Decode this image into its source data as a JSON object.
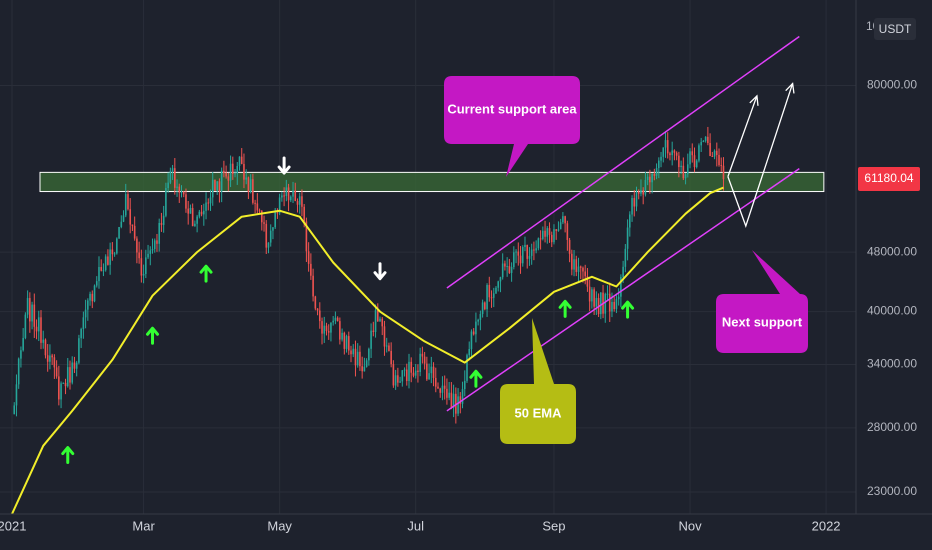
{
  "colors": {
    "background": "#1e222d",
    "grid": "#2a2e39",
    "candle_up": "#26a69a",
    "candle_down": "#ef5350",
    "ema": "#f2ee2a",
    "channel": "#e040fb",
    "zone_fill": "#3a6b35",
    "zone_stroke": "#ffffff",
    "callout_magenta": "#c418c4",
    "callout_olive": "#b5bd14",
    "arrow_up": "#33ff33",
    "price_label_bg": "#f23645"
  },
  "chart_data": {
    "type": "candlestick",
    "symbol_currency": "USDT",
    "y_scale": "log",
    "ylim": [
      21500,
      104000
    ],
    "x_range": [
      "2021-01-01",
      "2022-01-05"
    ],
    "x_tick_labels": [
      {
        "label": "2021",
        "date": "2021-01-01"
      },
      {
        "label": "Mar",
        "date": "2021-03-01"
      },
      {
        "label": "May",
        "date": "2021-05-01"
      },
      {
        "label": "Jul",
        "date": "2021-07-01"
      },
      {
        "label": "Sep",
        "date": "2021-09-01"
      },
      {
        "label": "Nov",
        "date": "2021-11-01"
      },
      {
        "label": "2022",
        "date": "2022-01-01"
      }
    ],
    "y_ticks": [
      {
        "label": "80000.00",
        "value": 80000
      },
      {
        "label": "48000.00",
        "value": 48000
      },
      {
        "label": "40000.00",
        "value": 40000
      },
      {
        "label": "34000.00",
        "value": 34000
      },
      {
        "label": "28000.00",
        "value": 28000
      },
      {
        "label": "23000.00",
        "value": 23000
      }
    ],
    "top_axis_label_partial": "10",
    "last_price": {
      "label": "61180.04",
      "value": 61180.04
    },
    "price_anchors": [
      [
        "2021-01-01",
        29000
      ],
      [
        "2021-01-08",
        40500
      ],
      [
        "2021-01-15",
        37000
      ],
      [
        "2021-01-22",
        31500
      ],
      [
        "2021-01-28",
        33500
      ],
      [
        "2021-02-08",
        45000
      ],
      [
        "2021-02-15",
        47500
      ],
      [
        "2021-02-21",
        56000
      ],
      [
        "2021-02-28",
        45500
      ],
      [
        "2021-03-08",
        51500
      ],
      [
        "2021-03-13",
        61000
      ],
      [
        "2021-03-25",
        52500
      ],
      [
        "2021-04-01",
        58500
      ],
      [
        "2021-04-14",
        63500
      ],
      [
        "2021-04-25",
        49500
      ],
      [
        "2021-05-03",
        57000
      ],
      [
        "2021-05-10",
        56000
      ],
      [
        "2021-05-19",
        38000
      ],
      [
        "2021-05-25",
        38500
      ],
      [
        "2021-06-08",
        33500
      ],
      [
        "2021-06-14",
        40000
      ],
      [
        "2021-06-22",
        32000
      ],
      [
        "2021-07-03",
        34500
      ],
      [
        "2021-07-20",
        29800
      ],
      [
        "2021-07-28",
        40000
      ],
      [
        "2021-08-14",
        47000
      ],
      [
        "2021-08-22",
        49000
      ],
      [
        "2021-09-06",
        52000
      ],
      [
        "2021-09-08",
        46500
      ],
      [
        "2021-09-21",
        41000
      ],
      [
        "2021-09-29",
        41500
      ],
      [
        "2021-10-06",
        55000
      ],
      [
        "2021-10-15",
        62000
      ],
      [
        "2021-10-20",
        66000
      ],
      [
        "2021-10-28",
        61500
      ],
      [
        "2021-11-09",
        67500
      ],
      [
        "2021-11-16",
        61180
      ]
    ],
    "ema_50": [
      [
        "2021-01-01",
        21500
      ],
      [
        "2021-01-15",
        26500
      ],
      [
        "2021-01-28",
        29500
      ],
      [
        "2021-02-15",
        34500
      ],
      [
        "2021-03-05",
        42000
      ],
      [
        "2021-03-25",
        48000
      ],
      [
        "2021-04-14",
        53500
      ],
      [
        "2021-05-01",
        54500
      ],
      [
        "2021-05-10",
        53500
      ],
      [
        "2021-05-25",
        46500
      ],
      [
        "2021-06-15",
        40000
      ],
      [
        "2021-07-05",
        36500
      ],
      [
        "2021-07-23",
        34200
      ],
      [
        "2021-08-12",
        38000
      ],
      [
        "2021-09-01",
        42500
      ],
      [
        "2021-09-18",
        44500
      ],
      [
        "2021-09-29",
        43200
      ],
      [
        "2021-10-13",
        48000
      ],
      [
        "2021-10-30",
        54000
      ],
      [
        "2021-11-10",
        57500
      ],
      [
        "2021-11-16",
        58500
      ]
    ],
    "support_zone": {
      "y_low": 57800,
      "y_high": 61300,
      "x_start": "2021-01-01",
      "x_end": "2021-12-31"
    },
    "channel_upper": [
      [
        "2021-07-15",
        43000
      ],
      [
        "2021-12-20",
        93000
      ]
    ],
    "channel_lower": [
      [
        "2021-07-15",
        29500
      ],
      [
        "2021-12-20",
        62000
      ]
    ],
    "projection_paths": [
      [
        [
          "2021-11-18",
          60500
        ],
        [
          "2021-12-01",
          77500
        ]
      ],
      [
        [
          "2021-11-18",
          60500
        ],
        [
          "2021-11-26",
          52000
        ],
        [
          "2021-12-17",
          80500
        ]
      ]
    ],
    "up_arrow_markers": [
      [
        "2021-01-26",
        25800
      ],
      [
        "2021-03-05",
        37200
      ],
      [
        "2021-03-29",
        45000
      ],
      [
        "2021-07-28",
        32600
      ],
      [
        "2021-09-06",
        40400
      ],
      [
        "2021-10-04",
        40300
      ]
    ],
    "down_arrow_markers": [
      [
        "2021-05-03",
        62500
      ],
      [
        "2021-06-15",
        45200
      ]
    ]
  },
  "annotations": {
    "current_support": "Current support area",
    "next_support": "Next support",
    "ema_label": "50 EMA"
  }
}
